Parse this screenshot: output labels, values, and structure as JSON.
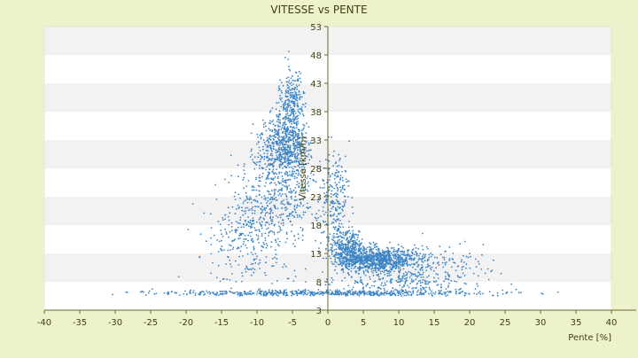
{
  "chart_data": {
    "type": "scatter",
    "title": "VITESSE vs PENTE",
    "xlabel": "Pente [%]",
    "ylabel": "Vitesse [km/h]",
    "xlim": [
      -40,
      40
    ],
    "ylim": [
      3,
      53
    ],
    "xticks": [
      -40,
      -35,
      -30,
      -25,
      -20,
      -15,
      -10,
      -5,
      0,
      5,
      10,
      15,
      20,
      25,
      30,
      35,
      40
    ],
    "yticks": [
      3,
      8,
      13,
      18,
      23,
      28,
      33,
      38,
      43,
      48,
      53
    ],
    "grid": "horizontal alternating bands",
    "legend": "none",
    "colors": {
      "background": "#eef2cc",
      "plot_band_light": "#ffffff",
      "plot_band_dark": "#f2f2f2",
      "point": "#3d85c6",
      "axis": "#6b6b2a",
      "text": "#3f3f0f"
    },
    "series": [
      {
        "clusters": [
          {
            "cx": -6,
            "sx": 2.5,
            "cy": 32,
            "sy": 4,
            "n": 700
          },
          {
            "cx": -5,
            "sx": 1.2,
            "cy": 40,
            "sy": 4,
            "n": 250
          },
          {
            "cx": -7,
            "sx": 4,
            "cy": 24,
            "sy": 5,
            "n": 350
          },
          {
            "cx": -9,
            "sx": 5,
            "cy": 18,
            "sy": 4,
            "n": 200
          },
          {
            "cx": 7,
            "sx": 4,
            "cy": 12,
            "sy": 1.5,
            "n": 900
          },
          {
            "cx": 3,
            "sx": 1.5,
            "cy": 14,
            "sy": 2.5,
            "n": 300
          },
          {
            "cx": 1,
            "sx": 1.5,
            "cy": 22,
            "sy": 6,
            "n": 250
          },
          {
            "cx": 14,
            "sx": 6,
            "cy": 11,
            "sy": 3,
            "n": 200
          },
          {
            "cx": 0,
            "sx": 14,
            "cy": 6,
            "sy": 0.4,
            "n": 450
          },
          {
            "cx": 2,
            "sx": 22,
            "cy": 6,
            "sy": 0.3,
            "n": 120
          },
          {
            "cx": 10,
            "sx": 9,
            "cy": 8,
            "sy": 1.8,
            "n": 250
          },
          {
            "cx": -12,
            "sx": 4,
            "cy": 14,
            "sy": 5,
            "n": 150
          }
        ]
      }
    ]
  }
}
